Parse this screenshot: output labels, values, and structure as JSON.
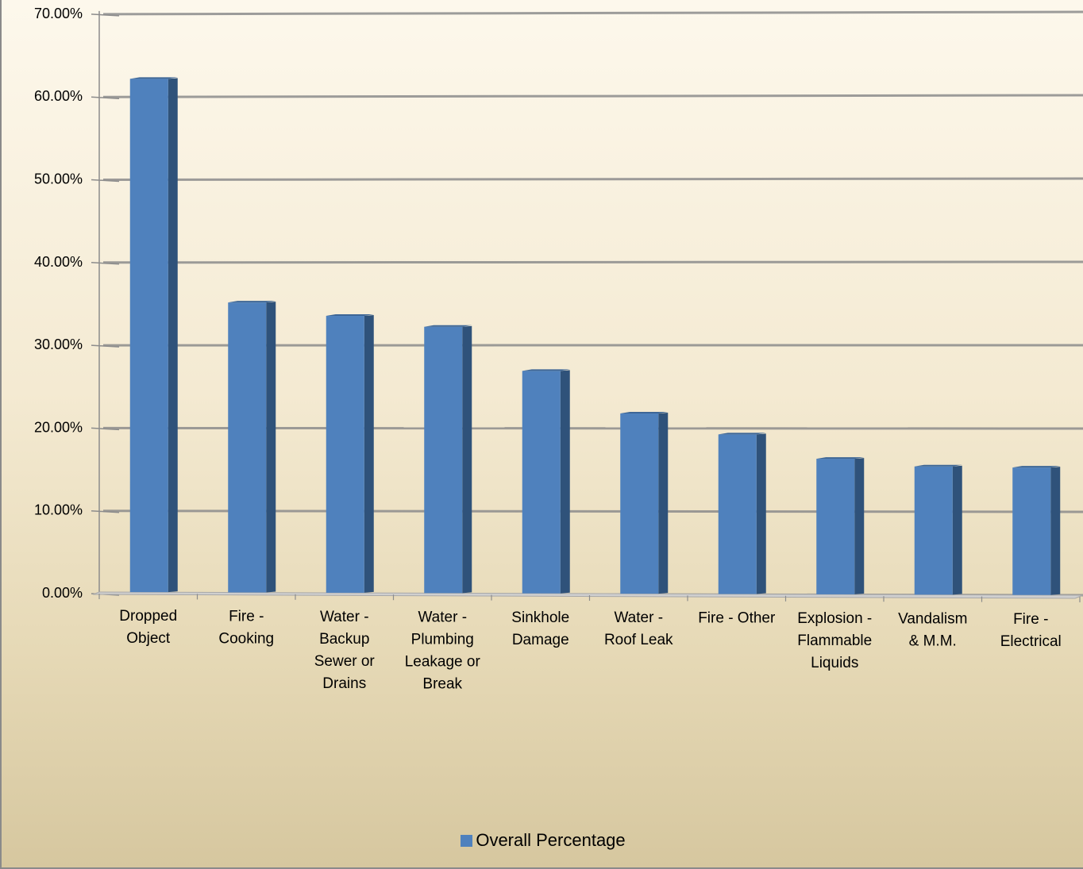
{
  "chart_data": {
    "type": "bar",
    "categories": [
      "Dropped Object",
      "Fire - Cooking",
      "Water - Backup Sewer or Drains",
      "Water - Plumbing Leakage or Break",
      "Sinkhole Damage",
      "Water - Roof Leak",
      "Fire - Other",
      "Explosion - Flammable Liquids",
      "Vandalism & M.M.",
      "Fire - Electrical"
    ],
    "category_label_lines": [
      [
        "Dropped",
        "Object"
      ],
      [
        "Fire -",
        "Cooking"
      ],
      [
        "Water -",
        "Backup",
        "Sewer or",
        "Drains"
      ],
      [
        "Water -",
        "Plumbing",
        "Leakage or",
        "Break"
      ],
      [
        "Sinkhole",
        "Damage"
      ],
      [
        "Water -",
        "Roof Leak"
      ],
      [
        "Fire - Other"
      ],
      [
        "Explosion -",
        "Flammable",
        "Liquids"
      ],
      [
        "Vandalism",
        "& M.M."
      ],
      [
        "Fire -",
        "Electrical"
      ]
    ],
    "series": [
      {
        "name": "Overall Percentage",
        "color": "#4f81bd",
        "values": [
          62.0,
          35.0,
          33.4,
          32.1,
          26.8,
          21.7,
          19.2,
          16.3,
          15.4,
          15.3
        ]
      }
    ],
    "ylim": [
      0,
      70
    ],
    "y_ticks": [
      "0.00%",
      "10.00%",
      "20.00%",
      "30.00%",
      "40.00%",
      "50.00%",
      "60.00%",
      "70.00%"
    ],
    "y_format": "percent_2dp",
    "grid": true,
    "legend_position": "bottom",
    "legend": {
      "label": "Overall Percentage",
      "color": "#4f81bd"
    }
  }
}
